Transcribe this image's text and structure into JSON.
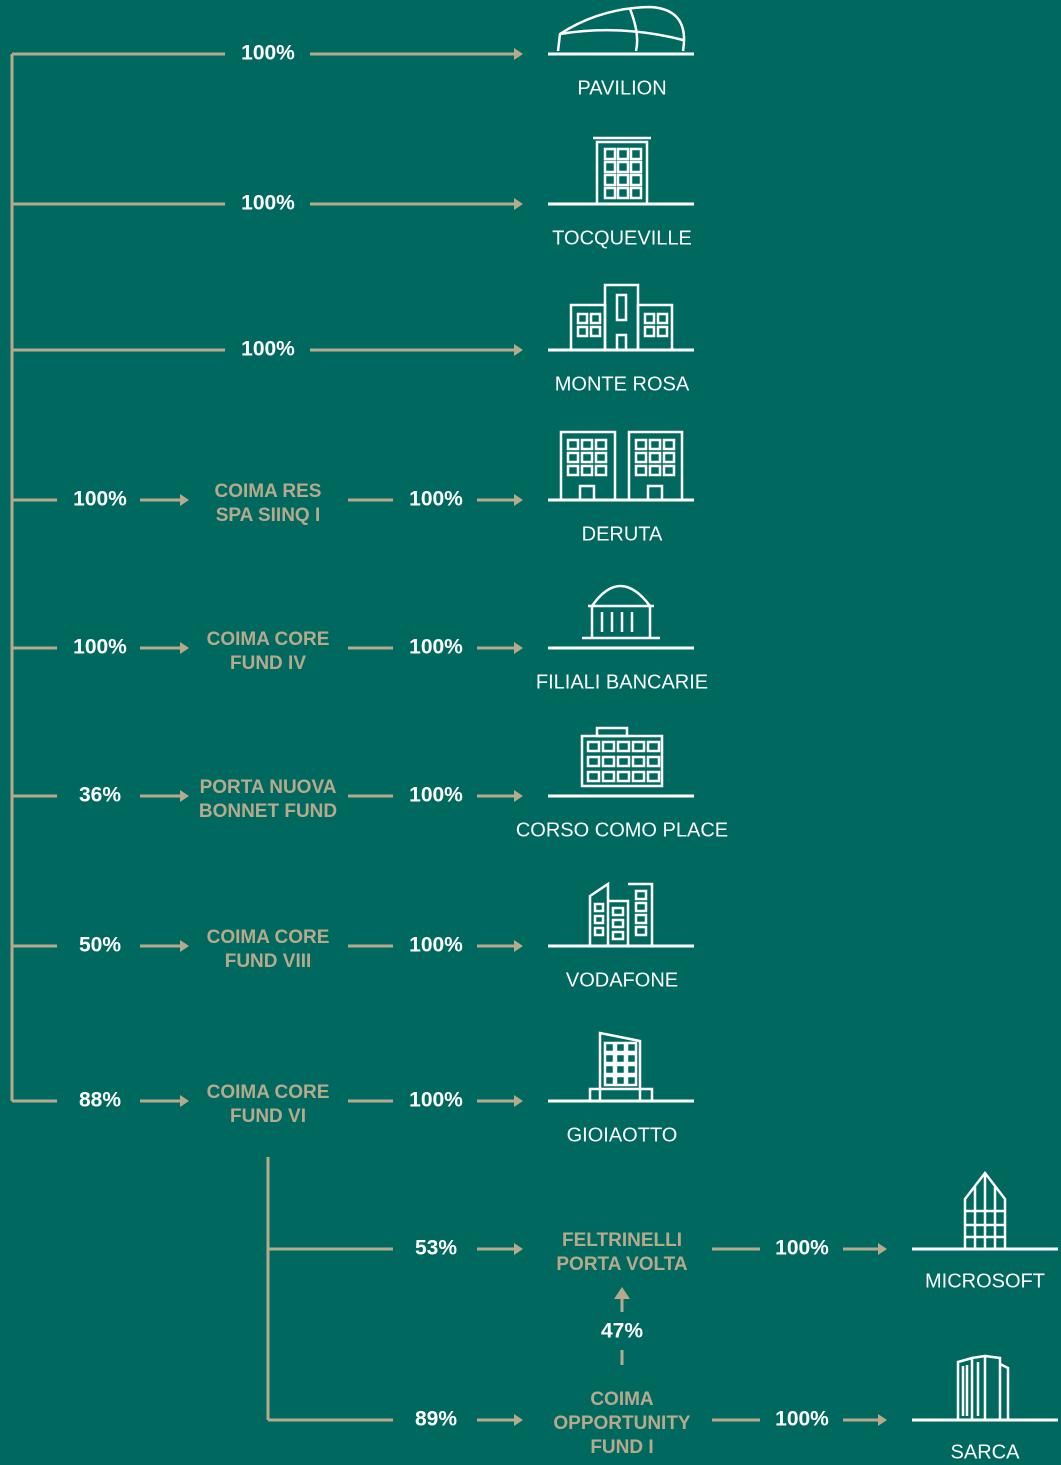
{
  "rows": [
    {
      "pct": "100%",
      "asset": "PAVILION"
    },
    {
      "pct": "100%",
      "asset": "TOCQUEVILLE"
    },
    {
      "pct": "100%",
      "asset": "MONTE ROSA"
    },
    {
      "pct": "100%",
      "fund": [
        "COIMA RES",
        "SPA SIINQ I"
      ],
      "fund_pct": "100%",
      "asset": "DERUTA"
    },
    {
      "pct": "100%",
      "fund": [
        "COIMA CORE",
        "FUND IV"
      ],
      "fund_pct": "100%",
      "asset": "FILIALI BANCARIE"
    },
    {
      "pct": "36%",
      "fund": [
        "PORTA NUOVA",
        "BONNET FUND"
      ],
      "fund_pct": "100%",
      "asset": "CORSO COMO PLACE"
    },
    {
      "pct": "50%",
      "fund": [
        "COIMA CORE",
        "FUND VIII"
      ],
      "fund_pct": "100%",
      "asset": "VODAFONE"
    },
    {
      "pct": "88%",
      "fund": [
        "COIMA CORE",
        "FUND VI"
      ],
      "fund_pct": "100%",
      "asset": "GIOIAOTTO"
    }
  ],
  "sub": {
    "branches": [
      {
        "pct": "53%",
        "fund": [
          "FELTRINELLI",
          "PORTA VOLTA"
        ],
        "fund_pct": "100%",
        "asset": "MICROSOFT"
      },
      {
        "pct": "89%",
        "fund": [
          "COIMA",
          "OPPORTUNITY",
          "FUND I"
        ],
        "fund_pct": "100%",
        "asset": "SARCA"
      }
    ],
    "link_pct": "47%"
  }
}
